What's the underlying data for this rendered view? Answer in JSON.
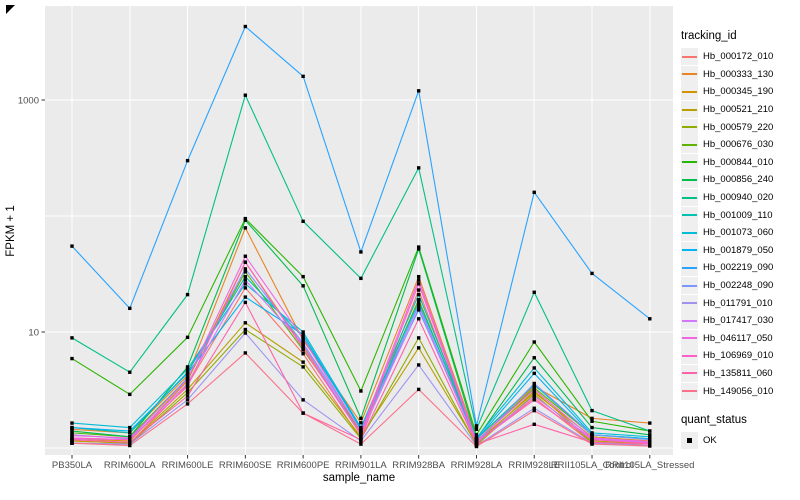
{
  "chart_data": {
    "type": "line",
    "xlabel": "sample_name",
    "ylabel": "FPKM + 1",
    "y_scale": "log10",
    "ylim": [
      1,
      5000
    ],
    "y_ticks": [
      10,
      1000
    ],
    "y_tick_labels": [
      "10",
      "1000"
    ],
    "y_minor_gridlines": [
      1,
      100
    ],
    "grid": "on",
    "legend_position": "right",
    "point_shape": "filled-square",
    "point_color": "#000000",
    "categories": [
      "PB350LA",
      "RRIM600LA",
      "RRIM600LE",
      "RRIM600SE",
      "RRIM600PE",
      "RRIM901LA",
      "RRIM928BA",
      "RRIM928LA",
      "RRIM928LE",
      "RRII105LA_Control",
      "RRII105LA_Stressed"
    ],
    "series": [
      {
        "name": "Hb_000172_010",
        "color": "#F8766D",
        "values": [
          1.15,
          1.1,
          3.5,
          24,
          6.5,
          1.2,
          23,
          1.1,
          2.7,
          1.1,
          1.08
        ]
      },
      {
        "name": "Hb_000333_130",
        "color": "#E88526",
        "values": [
          1.45,
          1.35,
          4.2,
          79,
          8.5,
          1.65,
          30,
          1.2,
          3.4,
          1.8,
          1.64
        ]
      },
      {
        "name": "Hb_000345_190",
        "color": "#D39200",
        "values": [
          1.2,
          1.15,
          3.8,
          40,
          7.5,
          1.35,
          19,
          1.12,
          3.0,
          1.25,
          1.15
        ]
      },
      {
        "name": "Hb_000521_210",
        "color": "#B79F00",
        "values": [
          1.15,
          1.1,
          3.2,
          12,
          5.5,
          1.25,
          7.3,
          1.08,
          3.1,
          1.15,
          1.1
        ]
      },
      {
        "name": "Hb_000579_220",
        "color": "#93AA00",
        "values": [
          1.1,
          1.08,
          3.0,
          10.5,
          5.0,
          1.2,
          8.9,
          1.06,
          2.9,
          1.12,
          1.08
        ]
      },
      {
        "name": "Hb_000676_030",
        "color": "#5EB300",
        "values": [
          1.35,
          1.25,
          4.0,
          33,
          7.0,
          1.4,
          19,
          1.15,
          3.3,
          1.3,
          1.2
        ]
      },
      {
        "name": "Hb_000844_010",
        "color": "#2BB600",
        "values": [
          5.9,
          2.9,
          9.0,
          95,
          30,
          3.1,
          54,
          1.3,
          8.2,
          1.7,
          1.4
        ]
      },
      {
        "name": "Hb_000856_240",
        "color": "#00BB4E",
        "values": [
          1.4,
          1.25,
          5.0,
          92,
          25,
          1.8,
          52,
          1.2,
          6.0,
          1.5,
          1.3
        ]
      },
      {
        "name": "Hb_000940_020",
        "color": "#00C087",
        "values": [
          8.9,
          4.5,
          21,
          1100,
          90,
          29,
          260,
          1.45,
          22,
          2.1,
          1.4
        ]
      },
      {
        "name": "Hb_001009_110",
        "color": "#00C0B2",
        "values": [
          1.5,
          1.35,
          4.5,
          30,
          9.0,
          1.5,
          21,
          1.2,
          3.5,
          1.3,
          1.2
        ]
      },
      {
        "name": "Hb_001073_060",
        "color": "#00BCD6",
        "values": [
          1.64,
          1.5,
          4.8,
          26,
          10,
          1.5,
          18,
          1.22,
          4.9,
          1.35,
          1.25
        ]
      },
      {
        "name": "Hb_001879_050",
        "color": "#00B3F2",
        "values": [
          1.5,
          1.4,
          4.4,
          20,
          9.5,
          1.45,
          15.5,
          1.18,
          4.4,
          1.3,
          1.2
        ]
      },
      {
        "name": "Hb_002219_090",
        "color": "#29A3FF",
        "values": [
          55,
          16,
          300,
          4300,
          1600,
          49,
          1200,
          1.55,
          160,
          32,
          13
        ]
      },
      {
        "name": "Hb_002248_090",
        "color": "#7C96FF",
        "values": [
          1.3,
          1.2,
          4.0,
          35,
          8.0,
          1.4,
          17,
          1.1,
          3.6,
          1.3,
          1.18
        ]
      },
      {
        "name": "Hb_011791_010",
        "color": "#9E94F0",
        "values": [
          1.1,
          1.08,
          2.6,
          9.8,
          2.6,
          1.15,
          5.2,
          1.05,
          2.2,
          1.1,
          1.05
        ]
      },
      {
        "name": "Hb_017417_030",
        "color": "#D277FF",
        "values": [
          1.2,
          1.18,
          3.6,
          28,
          7.8,
          1.3,
          16,
          1.1,
          2.8,
          1.2,
          1.12
        ]
      },
      {
        "name": "Hb_046117_050",
        "color": "#F066E2",
        "values": [
          1.28,
          1.22,
          3.9,
          45,
          8.8,
          1.38,
          28,
          1.15,
          3.2,
          1.22,
          1.14
        ]
      },
      {
        "name": "Hb_106969_010",
        "color": "#FF61C7",
        "values": [
          1.22,
          1.18,
          3.4,
          40,
          7.2,
          1.3,
          26,
          1.12,
          2.6,
          1.18,
          1.1
        ]
      },
      {
        "name": "Hb_135811_060",
        "color": "#FF63A8",
        "values": [
          1.18,
          1.12,
          2.8,
          18,
          2.0,
          1.18,
          13,
          1.08,
          1.6,
          1.12,
          1.08
        ]
      },
      {
        "name": "Hb_149056_010",
        "color": "#FC7189",
        "values": [
          1.1,
          1.05,
          2.4,
          6.6,
          2.0,
          1.08,
          3.2,
          1.03,
          2.1,
          1.08,
          1.04
        ]
      }
    ]
  },
  "legend": {
    "tracking_title": "tracking_id",
    "quant_title": "quant_status",
    "quant_items": [
      {
        "label": "OK"
      }
    ]
  },
  "colors": {
    "panel_bg": "#EBEBEB",
    "grid": "#FFFFFF",
    "axis_text": "#4D4D4D",
    "tick_mark": "#333333",
    "legend_key_bg": "#EFEFEF",
    "point": "#000000"
  }
}
